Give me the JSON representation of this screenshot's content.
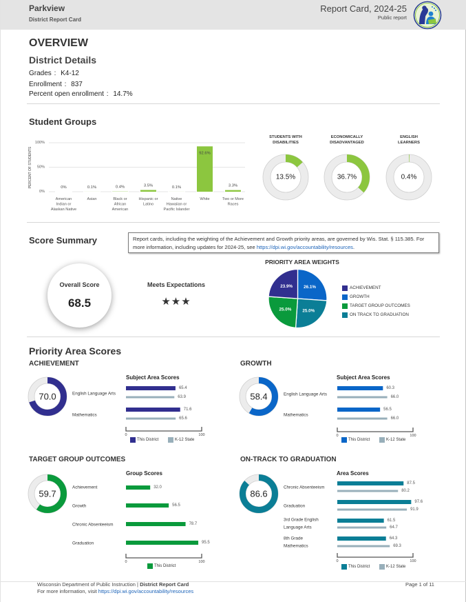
{
  "colors": {
    "achievement": "#312f8f",
    "growth": "#0a66c8",
    "target_group": "#0a9a3c",
    "on_track": "#0b7e96",
    "state": "#98afba",
    "student_group": "#8cc63f",
    "ring_bg": "#ececec",
    "ring_border": "#cfcfcf",
    "link": "#1a62b8",
    "header_bg": "#e4e4e4"
  },
  "header": {
    "district": "Parkview",
    "subtitle": "District Report Card",
    "title": "Report Card, 2024-25",
    "report_type": "Public report",
    "logo_icon": "dpi-logo-icon"
  },
  "overview": {
    "heading": "OVERVIEW",
    "details_heading": "District Details",
    "details": [
      {
        "label": "Grades",
        "sep": ":",
        "value": "K4-12"
      },
      {
        "label": "Enrollment",
        "sep": ":",
        "value": "837"
      },
      {
        "label": "Percent open enrollment",
        "sep": ":",
        "value": "14.7%"
      }
    ]
  },
  "student_groups": {
    "heading": "Student Groups"
  },
  "score_summary": {
    "heading": "Score Summary",
    "notice": {
      "line1": "Report cards, including the weighting of the Achievement and Growth priority areas, are governed by Wis. Stat. § 115.385. For",
      "line2_prefix": "more information, including updates for 2024-25, see ",
      "link": "https://dpi.wi.gov/accountability/resources",
      "line2_suffix": "."
    },
    "overall_score_label": "Overall Score",
    "overall_score": "68.5",
    "rating": "Meets Expectations",
    "stars": "★★★",
    "star_count": 3,
    "weights_title": "PRIORITY AREA WEIGHTS"
  },
  "priority_area_scores": {
    "heading": "Priority Area Scores",
    "sections": [
      {
        "title": "ACHIEVEMENT",
        "chart_title": "Subject Area Scores"
      },
      {
        "title": "GROWTH",
        "chart_title": "Subject Area Scores"
      },
      {
        "title": "TARGET GROUP OUTCOMES",
        "chart_title": "Group Scores"
      },
      {
        "title": "ON-TRACK TO GRADUATION",
        "chart_title": "Area Scores"
      }
    ]
  },
  "footer": {
    "org": "Wisconsin Department of Public Instruction | ",
    "doc": "District Report Card",
    "more_prefix": "For more information, visit ",
    "link": "https://dpi.wi.gov/accountability/resources",
    "page": "Page 1 of 11"
  },
  "chart_data": [
    {
      "type": "bar",
      "title": "Student Groups",
      "xlabel": "",
      "ylabel": "PERCENT OF STUDENTS",
      "categories": [
        [
          "American",
          "Indian or",
          "Alaskan Native"
        ],
        [
          "Asian"
        ],
        [
          "Black or",
          "African",
          "American"
        ],
        [
          "Hispanic or",
          "Latino"
        ],
        [
          "Native",
          "Hawaiian or",
          "Pacific Islander"
        ],
        [
          "White"
        ],
        [
          "Two or More",
          "Races"
        ]
      ],
      "values": [
        0,
        0.1,
        0.4,
        3.5,
        0.1,
        92.6,
        3.3
      ],
      "value_labels": [
        "0%",
        "0.1%",
        "0.4%",
        "3.5%",
        "0.1%",
        "92.6%",
        "3.3%"
      ],
      "ylim": [
        0,
        100
      ],
      "ytick_values": [
        0,
        50,
        100
      ],
      "yticks": [
        "0%",
        "50%",
        "100%"
      ],
      "grid": true,
      "color": "#8cc63f"
    },
    {
      "type": "pie",
      "variant": "donut",
      "items": [
        {
          "title": [
            "STUDENTS WITH",
            "DISABILITIES"
          ],
          "value": 13.5,
          "label": "13.5%"
        },
        {
          "title": [
            "ECONOMICALLY",
            "DISADVANTAGED"
          ],
          "value": 36.7,
          "label": "36.7%"
        },
        {
          "title": [
            "ENGLISH",
            "LEARNERS"
          ],
          "value": 0.4,
          "label": "0.4%"
        }
      ],
      "color": "#8cc63f"
    },
    {
      "type": "pie",
      "title": "PRIORITY AREA WEIGHTS",
      "legend": "right",
      "slices": [
        {
          "name": "ACHIEVEMENT",
          "value": 23.9,
          "label": "23.9%",
          "color": "#312f8f"
        },
        {
          "name": "GROWTH",
          "value": 26.1,
          "label": "26.1%",
          "color": "#0a66c8"
        },
        {
          "name": "TARGET GROUP OUTCOMES",
          "value": 25.0,
          "label": "25.0%",
          "color": "#0a9a3c"
        },
        {
          "name": "ON TRACK TO GRADUATION",
          "value": 25.0,
          "label": "25.0%",
          "color": "#0b7e96"
        }
      ]
    },
    {
      "type": "bar",
      "orientation": "horizontal",
      "title": "Subject Area Scores",
      "section": "ACHIEVEMENT",
      "score": 70.0,
      "score_label": "70.0",
      "categories": [
        [
          "English Language Arts"
        ],
        [
          "Mathematics"
        ]
      ],
      "series": [
        {
          "name": "This District",
          "values": [
            65.4,
            71.6
          ],
          "labels": [
            "65.4",
            "71.6"
          ],
          "color": "#312f8f"
        },
        {
          "name": "K-12 State",
          "values": [
            63.9,
            65.6
          ],
          "labels": [
            "63.9",
            "65.6"
          ],
          "color": "#98afba"
        }
      ],
      "xlim": [
        0,
        100
      ],
      "xticks": [
        "0",
        "100"
      ]
    },
    {
      "type": "bar",
      "orientation": "horizontal",
      "title": "Subject Area Scores",
      "section": "GROWTH",
      "score": 58.4,
      "score_label": "58.4",
      "categories": [
        [
          "English Language Arts"
        ],
        [
          "Mathematics"
        ]
      ],
      "series": [
        {
          "name": "This District",
          "values": [
            60.3,
            56.5
          ],
          "labels": [
            "60.3",
            "56.5"
          ],
          "color": "#0a66c8"
        },
        {
          "name": "K-12 State",
          "values": [
            66.0,
            66.0
          ],
          "labels": [
            "66.0",
            "66.0"
          ],
          "color": "#98afba"
        }
      ],
      "xlim": [
        0,
        100
      ],
      "xticks": [
        "0",
        "100"
      ]
    },
    {
      "type": "bar",
      "orientation": "horizontal",
      "title": "Group Scores",
      "section": "TARGET GROUP OUTCOMES",
      "score": 59.7,
      "score_label": "59.7",
      "categories": [
        [
          "Achievement"
        ],
        [
          "Growth"
        ],
        [
          "Chronic Absenteeism"
        ],
        [
          "Graduation"
        ]
      ],
      "series": [
        {
          "name": "This District",
          "values": [
            32.0,
            56.5,
            78.7,
            95.5
          ],
          "labels": [
            "32.0",
            "56.5",
            "78.7",
            "95.5"
          ],
          "color": "#0a9a3c"
        }
      ],
      "xlim": [
        0,
        100
      ],
      "xticks": [
        "0",
        "100"
      ]
    },
    {
      "type": "bar",
      "orientation": "horizontal",
      "title": "Area Scores",
      "section": "ON-TRACK TO GRADUATION",
      "score": 86.6,
      "score_label": "86.6",
      "categories": [
        [
          "Chronic Absenteeism"
        ],
        [
          "Graduation"
        ],
        [
          "3rd Grade English",
          "Language Arts"
        ],
        [
          "8th Grade",
          "Mathematics"
        ]
      ],
      "series": [
        {
          "name": "This District",
          "values": [
            87.5,
            97.6,
            61.5,
            64.3
          ],
          "labels": [
            "87.5",
            "97.6",
            "61.5",
            "64.3"
          ],
          "color": "#0b7e96"
        },
        {
          "name": "K-12 State",
          "values": [
            80.2,
            91.9,
            64.7,
            69.3
          ],
          "labels": [
            "80.2",
            "91.9",
            "64.7",
            "69.3"
          ],
          "color": "#98afba"
        }
      ],
      "xlim": [
        0,
        100
      ],
      "xticks": [
        "0",
        "100"
      ]
    }
  ]
}
